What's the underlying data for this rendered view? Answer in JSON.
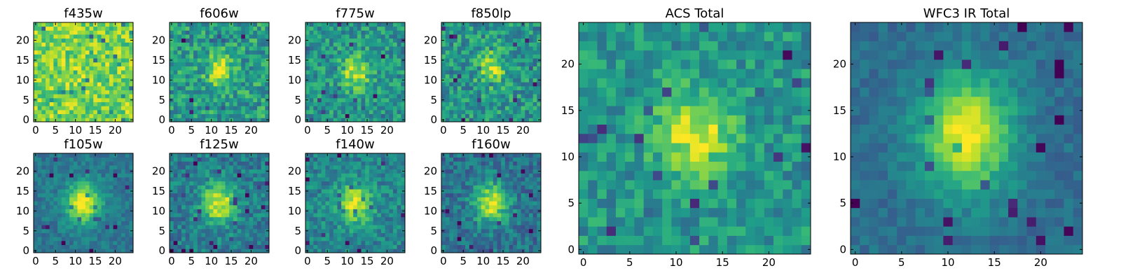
{
  "chart_data": [
    {
      "type": "heatmap",
      "title": "f435w",
      "size": 25,
      "center": [
        11,
        11
      ],
      "sigma": [
        4,
        4
      ],
      "peak": 0.05,
      "noise": 0.18,
      "base": 0.8,
      "seed": 11,
      "xticks": [
        0,
        5,
        10,
        15,
        20
      ],
      "yticks": [
        0,
        5,
        10,
        15,
        20
      ],
      "colormap": "viridis"
    },
    {
      "type": "heatmap",
      "title": "f606w",
      "size": 25,
      "center": [
        12,
        12.5
      ],
      "sigma": [
        2.2,
        2.8
      ],
      "peak": 0.4,
      "noise": 0.2,
      "base": 0.55,
      "seed": 22,
      "xticks": [
        0,
        5,
        10,
        15,
        20
      ],
      "yticks": [
        0,
        5,
        10,
        15,
        20
      ],
      "colormap": "viridis"
    },
    {
      "type": "heatmap",
      "title": "f775w",
      "size": 25,
      "center": [
        12,
        12
      ],
      "sigma": [
        2.5,
        2.8
      ],
      "peak": 0.4,
      "noise": 0.18,
      "base": 0.52,
      "seed": 33,
      "xticks": [
        0,
        5,
        10,
        15,
        20
      ],
      "yticks": [
        0,
        5,
        10,
        15,
        20
      ],
      "colormap": "viridis"
    },
    {
      "type": "heatmap",
      "title": "f850lp",
      "size": 25,
      "center": [
        12,
        13
      ],
      "sigma": [
        2.3,
        2.8
      ],
      "peak": 0.4,
      "noise": 0.2,
      "base": 0.52,
      "seed": 44,
      "xticks": [
        0,
        5,
        10,
        15,
        20
      ],
      "yticks": [
        0,
        5,
        10,
        15,
        20
      ],
      "colormap": "viridis"
    },
    {
      "type": "heatmap",
      "title": "f105w",
      "size": 25,
      "center": [
        12,
        12
      ],
      "sigma": [
        3.0,
        3.5
      ],
      "peak": 0.6,
      "noise": 0.1,
      "base": 0.4,
      "seed": 55,
      "xticks": [
        0,
        5,
        10,
        15,
        20
      ],
      "yticks": [
        0,
        5,
        10,
        15,
        20
      ],
      "colormap": "viridis"
    },
    {
      "type": "heatmap",
      "title": "f125w",
      "size": 25,
      "center": [
        12,
        12
      ],
      "sigma": [
        3.0,
        3.5
      ],
      "peak": 0.55,
      "noise": 0.15,
      "base": 0.42,
      "seed": 66,
      "xticks": [
        0,
        5,
        10,
        15,
        20
      ],
      "yticks": [
        0,
        5,
        10,
        15,
        20
      ],
      "colormap": "viridis"
    },
    {
      "type": "heatmap",
      "title": "f140w",
      "size": 25,
      "center": [
        12,
        12
      ],
      "sigma": [
        3.0,
        3.5
      ],
      "peak": 0.5,
      "noise": 0.15,
      "base": 0.45,
      "seed": 77,
      "xticks": [
        0,
        5,
        10,
        15,
        20
      ],
      "yticks": [
        0,
        5,
        10,
        15,
        20
      ],
      "colormap": "viridis"
    },
    {
      "type": "heatmap",
      "title": "f160w",
      "size": 25,
      "center": [
        12,
        12
      ],
      "sigma": [
        3.0,
        3.5
      ],
      "peak": 0.55,
      "noise": 0.15,
      "base": 0.38,
      "seed": 88,
      "xticks": [
        0,
        5,
        10,
        15,
        20
      ],
      "yticks": [
        0,
        5,
        10,
        15,
        20
      ],
      "colormap": "viridis"
    },
    {
      "type": "heatmap",
      "title": "ACS Total",
      "size": 25,
      "center": [
        12,
        12.5
      ],
      "sigma": [
        2.8,
        3.2
      ],
      "peak": 0.45,
      "noise": 0.16,
      "base": 0.52,
      "seed": 99,
      "xticks": [
        0,
        5,
        10,
        15,
        20
      ],
      "yticks": [
        0,
        5,
        10,
        15,
        20
      ],
      "colormap": "viridis"
    },
    {
      "type": "heatmap",
      "title": "WFC3 IR Total",
      "size": 25,
      "center": [
        12,
        12.5
      ],
      "sigma": [
        3.5,
        4.5
      ],
      "peak": 0.62,
      "noise": 0.08,
      "base": 0.36,
      "seed": 111,
      "xticks": [
        0,
        5,
        10,
        15,
        20
      ],
      "yticks": [
        0,
        5,
        10,
        15,
        20
      ],
      "colormap": "viridis"
    }
  ]
}
